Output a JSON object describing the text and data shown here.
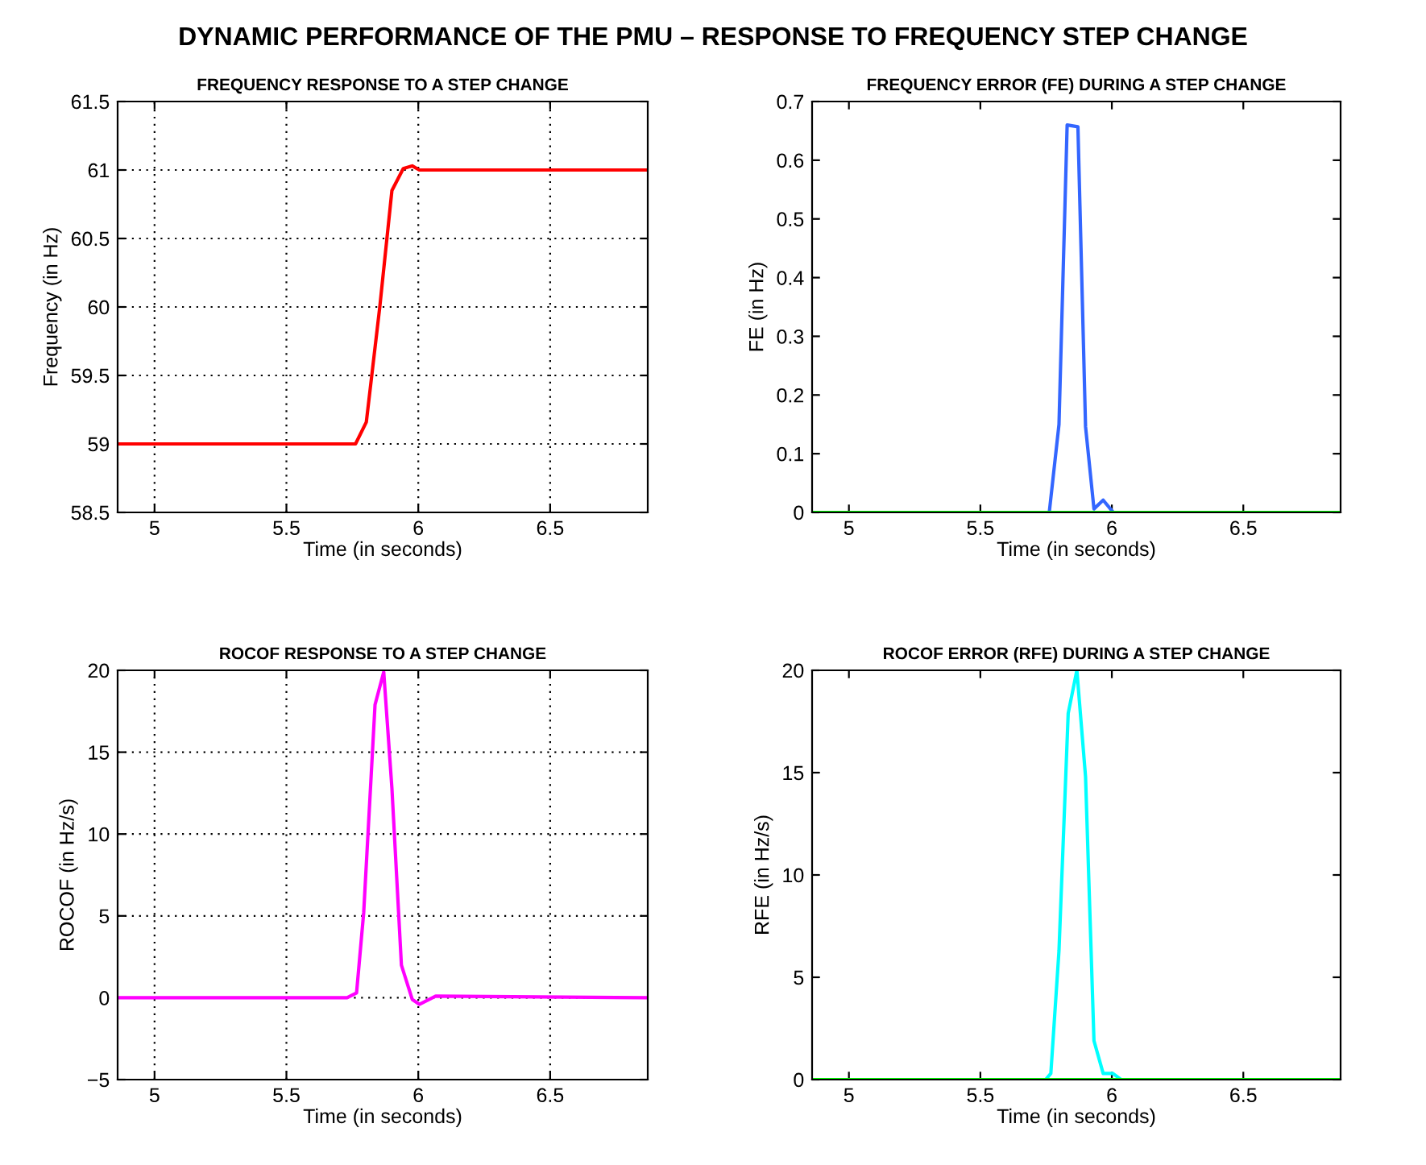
{
  "chart_data": [
    {
      "type": "line",
      "annotations": [
        "DYNAMIC PERFORMANCE OF THE PMU – RESPONSE TO FREQUENCY STEP CHANGE"
      ],
      "title": "FREQUENCY RESPONSE TO A STEP CHANGE",
      "xlabel": "Time (in seconds)",
      "ylabel": "Frequency (in Hz)",
      "xlim": [
        4.86,
        6.87
      ],
      "ylim": [
        58.5,
        61.5
      ],
      "xticks": [
        5,
        5.5,
        6,
        6.5
      ],
      "yticks": [
        58.5,
        59,
        59.5,
        60,
        60.5,
        61,
        61.5
      ],
      "grid": true,
      "line_style": "solid",
      "series": [
        {
          "color": "#ff0000",
          "x": [
            4.86,
            5.762,
            5.803,
            5.854,
            5.9,
            5.943,
            5.977,
            6.004,
            6.87
          ],
          "values": [
            59,
            59,
            59.16,
            60.0,
            60.85,
            61.01,
            61.03,
            61.0,
            61.0
          ]
        }
      ]
    },
    {
      "type": "line",
      "title": "FREQUENCY ERROR (FE) DURING A STEP CHANGE",
      "xlabel": "Time (in seconds)",
      "ylabel": "FE (in Hz)",
      "xlim": [
        4.86,
        6.87
      ],
      "ylim": [
        0,
        0.7
      ],
      "xticks": [
        5,
        5.5,
        6,
        6.5
      ],
      "yticks": [
        0,
        0.1,
        0.2,
        0.3,
        0.4,
        0.5,
        0.6,
        0.7
      ],
      "grid": false,
      "line_style": "solid",
      "series": [
        {
          "color": "#3366ff",
          "x": [
            5.762,
            5.799,
            5.83,
            5.871,
            5.9,
            5.932,
            5.967,
            6.0
          ],
          "values": [
            0,
            0.15,
            0.66,
            0.657,
            0.146,
            0.006,
            0.021,
            0.003
          ]
        },
        {
          "color": "#00ff00",
          "x": [
            4.86,
            6.87
          ],
          "values": [
            0,
            0
          ]
        }
      ]
    },
    {
      "type": "line",
      "title": "ROCOF RESPONSE TO A STEP CHANGE",
      "xlabel": "Time (in seconds)",
      "ylabel": "ROCOF (in Hz/s)",
      "xlim": [
        4.86,
        6.87
      ],
      "ylim": [
        -5,
        20
      ],
      "xticks": [
        5,
        5.5,
        6,
        6.5
      ],
      "yticks": [
        {
          "value": -5,
          "label": "−5"
        },
        0,
        5,
        10,
        15,
        20
      ],
      "grid": true,
      "line_style": "solid",
      "series": [
        {
          "color": "#ff00ff",
          "x": [
            4.86,
            5.73,
            5.766,
            5.793,
            5.836,
            5.869,
            5.9,
            5.936,
            5.977,
            6.004,
            6.066,
            6.87
          ],
          "values": [
            0,
            0,
            0.3,
            5.2,
            17.9,
            19.9,
            12.8,
            2.0,
            -0.1,
            -0.4,
            0.1,
            0
          ]
        }
      ]
    },
    {
      "type": "line",
      "title": "ROCOF ERROR (RFE) DURING A STEP CHANGE",
      "xlabel": "Time (in seconds)",
      "ylabel": "RFE (in Hz/s)",
      "xlim": [
        4.86,
        6.87
      ],
      "ylim": [
        0,
        20
      ],
      "xticks": [
        5,
        5.5,
        6,
        6.5
      ],
      "yticks": [
        0,
        5,
        10,
        15,
        20
      ],
      "grid": false,
      "line_style": "solid",
      "series": [
        {
          "color": "#00ffff",
          "x": [
            5.748,
            5.768,
            5.799,
            5.834,
            5.867,
            5.9,
            5.932,
            5.967,
            6.004,
            6.035
          ],
          "values": [
            0,
            0.3,
            6.3,
            17.9,
            20,
            14.8,
            1.9,
            0.3,
            0.3,
            0
          ]
        },
        {
          "color": "#00ff00",
          "x": [
            4.86,
            6.87
          ],
          "values": [
            0,
            0
          ]
        }
      ]
    }
  ]
}
